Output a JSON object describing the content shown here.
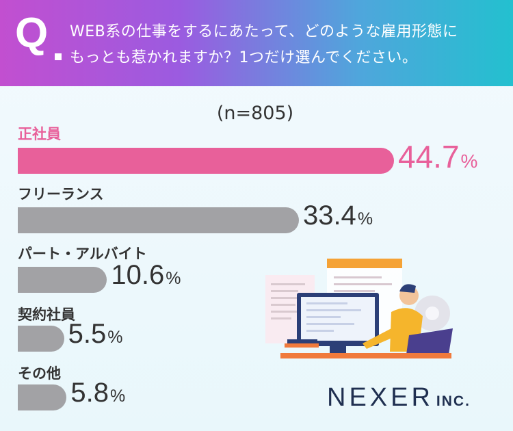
{
  "question": {
    "mark": "Q",
    "line1": "WEB系の仕事をするにあたって、どのような雇用形態に",
    "line2": "もっとも惹かれますか？1つだけ選んでください。"
  },
  "sample": "(n=805)",
  "chart_data": {
    "type": "bar",
    "orientation": "horizontal",
    "categories": [
      "正社員",
      "フリーランス",
      "パート・アルバイト",
      "契約社員",
      "その他"
    ],
    "values": [
      44.7,
      33.4,
      10.6,
      5.5,
      5.8
    ],
    "unit": "%",
    "highlight_color": "#e8609a",
    "bar_color": "#a2a2a5"
  },
  "logo": {
    "name": "NEXER",
    "suffix": "INC."
  }
}
